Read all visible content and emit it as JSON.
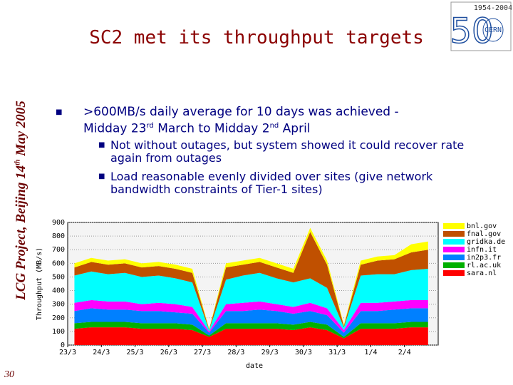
{
  "slide": {
    "title": "SC2 met its throughput targets",
    "side_text": [
      "LCG Project, Beijing 14",
      "th",
      " May 2005"
    ],
    "page_number": "30",
    "logo": {
      "years": "1954-2004",
      "number": "50",
      "name": "CERN"
    },
    "bullet": [
      ">600MB/s daily average for 10 days was achieved - Midday 23",
      "rd",
      " March to Midday 2",
      "nd",
      " April"
    ],
    "sub_bullets": [
      "Not without outages, but system showed it could recover rate again from outages",
      "Load reasonable evenly divided over sites (give network bandwidth constraints of Tier-1 sites)"
    ]
  },
  "chart_data": {
    "type": "stacked_area",
    "x_label": "date",
    "y_label": "Throughput (MB/s)",
    "xlim": [
      0,
      11
    ],
    "xticks": [
      {
        "value": 0,
        "label": "23/3"
      },
      {
        "value": 1,
        "label": "24/3"
      },
      {
        "value": 2,
        "label": "25/3"
      },
      {
        "value": 3,
        "label": "26/3"
      },
      {
        "value": 4,
        "label": "27/3"
      },
      {
        "value": 5,
        "label": "28/3"
      },
      {
        "value": 6,
        "label": "29/3"
      },
      {
        "value": 7,
        "label": "30/3"
      },
      {
        "value": 8,
        "label": "31/3"
      },
      {
        "value": 9,
        "label": "1/4"
      },
      {
        "value": 10,
        "label": "2/4"
      }
    ],
    "ylim": [
      0,
      900
    ],
    "yticks": [
      0,
      100,
      200,
      300,
      400,
      500,
      600,
      700,
      800,
      900
    ],
    "grid": true,
    "legend": "right",
    "x": [
      0.2,
      0.7,
      1.2,
      1.7,
      2.2,
      2.7,
      3.2,
      3.7,
      4.2,
      4.7,
      5.2,
      5.7,
      6.2,
      6.7,
      7.2,
      7.7,
      8.2,
      8.7,
      9.2,
      9.7,
      10.2,
      10.7
    ],
    "series": [
      {
        "name": "sara.nl",
        "color": "#ff0000",
        "values": [
          120,
          130,
          130,
          130,
          120,
          120,
          120,
          110,
          60,
          120,
          120,
          120,
          120,
          110,
          130,
          110,
          50,
          120,
          120,
          120,
          130,
          130
        ]
      },
      {
        "name": "rl.ac.uk",
        "color": "#00b000",
        "values": [
          40,
          40,
          40,
          40,
          40,
          40,
          40,
          40,
          10,
          40,
          40,
          40,
          40,
          40,
          40,
          40,
          10,
          40,
          40,
          40,
          40,
          40
        ]
      },
      {
        "name": "in2p3.fr",
        "color": "#0080ff",
        "values": [
          90,
          100,
          90,
          90,
          90,
          90,
          80,
          80,
          20,
          90,
          90,
          100,
          90,
          80,
          80,
          70,
          30,
          90,
          90,
          100,
          100,
          100
        ]
      },
      {
        "name": "infn.it",
        "color": "#ff00ff",
        "values": [
          60,
          60,
          60,
          60,
          50,
          60,
          60,
          50,
          10,
          50,
          60,
          60,
          50,
          50,
          60,
          50,
          20,
          60,
          60,
          60,
          60,
          60
        ]
      },
      {
        "name": "gridka.de",
        "color": "#00ffff",
        "values": [
          200,
          210,
          200,
          210,
          200,
          200,
          190,
          180,
          10,
          180,
          200,
          210,
          190,
          180,
          180,
          150,
          20,
          200,
          210,
          200,
          220,
          230
        ]
      },
      {
        "name": "fnal.gov",
        "color": "#c05000",
        "values": [
          60,
          70,
          70,
          70,
          70,
          70,
          70,
          70,
          5,
          90,
          80,
          80,
          80,
          70,
          340,
          170,
          10,
          80,
          100,
          110,
          130,
          140
        ]
      },
      {
        "name": "bnl.gov",
        "color": "#ffff00",
        "values": [
          30,
          30,
          30,
          30,
          30,
          30,
          30,
          30,
          5,
          30,
          30,
          30,
          30,
          30,
          30,
          30,
          10,
          30,
          30,
          30,
          60,
          60
        ]
      }
    ]
  }
}
